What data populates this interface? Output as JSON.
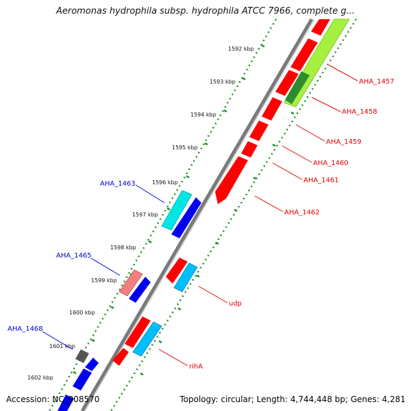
{
  "title": "Aeromonas hydrophila subsp. hydrophila ATCC 7966, complete g...",
  "footer": {
    "accession": "Accession: NC_008570",
    "topology": "Topology: circular; Length: 4,744,448 bp; Genes: 4,281"
  },
  "ticks": [
    "1592 kbp",
    "1593 kbp",
    "1594 kbp",
    "1595 kbp",
    "1596 kbp",
    "1597 kbp",
    "1598 kbp",
    "1599 kbp",
    "1600 kbp",
    "1601 kbp",
    "1602 kbp"
  ],
  "gene_labels": {
    "right": [
      "AHA_1457",
      "AHA_1458",
      "AHA_1459",
      "AHA_1460",
      "AHA_1461",
      "AHA_1462",
      "udp",
      "rihA"
    ],
    "left": [
      "AHA_1463",
      "AHA_1465",
      "AHA_1468"
    ]
  },
  "colors": {
    "forward_gene": "#ff0000",
    "reverse_gene": "#0000ee",
    "highlight_cyan": "#00e6e6",
    "highlight_light_blue": "#00bfff",
    "highlight_pink": "#f08080",
    "highlight_green": "#a6f040",
    "highlight_dark_green": "#2e8b2e",
    "highlight_gray": "#555555",
    "backbone": "#777777",
    "tick_color": "#228b22",
    "right_label_color": "#e00000",
    "left_label_color": "#0000cc"
  }
}
